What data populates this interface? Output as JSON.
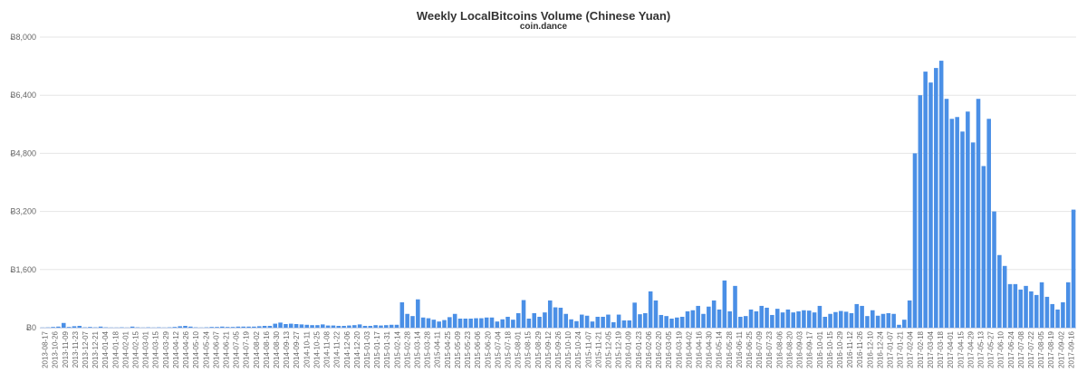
{
  "chart_data": {
    "type": "bar",
    "title": "Weekly LocalBitcoins Volume (Chinese Yuan)",
    "subtitle": "coin.dance",
    "xlabel": "",
    "ylabel": "",
    "ylim": [
      0,
      8000
    ],
    "yticks": [
      0,
      1600,
      3200,
      4800,
      6400,
      8000
    ],
    "ytick_labels": [
      "Ƀ0",
      "Ƀ1,600",
      "Ƀ3,200",
      "Ƀ4,800",
      "Ƀ6,400",
      "Ƀ8,000"
    ],
    "grid": true,
    "bar_color": "#4a8fe6",
    "start_week": "2013-08-17",
    "week_step_days": 7,
    "xtick_labels": [
      "2013-08-17",
      "2013-10-26",
      "2013-11-09",
      "2013-11-23",
      "2013-12-07",
      "2013-12-21",
      "2014-01-04",
      "2014-01-18",
      "2014-02-01",
      "2014-02-15",
      "2014-03-01",
      "2014-03-15",
      "2014-03-29",
      "2014-04-12",
      "2014-04-26",
      "2014-05-10",
      "2014-05-24",
      "2014-06-07",
      "2014-06-21",
      "2014-07-05",
      "2014-07-19",
      "2014-08-02",
      "2014-08-16",
      "2014-08-30",
      "2014-09-13",
      "2014-09-27",
      "2014-10-11",
      "2014-10-25",
      "2014-11-08",
      "2014-11-22",
      "2014-12-06",
      "2014-12-20",
      "2015-01-03",
      "2015-01-17",
      "2015-01-31",
      "2015-02-14",
      "2015-02-28",
      "2015-03-14",
      "2015-03-28",
      "2015-04-11",
      "2015-04-25",
      "2015-05-09",
      "2015-05-23",
      "2015-06-06",
      "2015-06-20",
      "2015-07-04",
      "2015-07-18",
      "2015-08-01",
      "2015-08-15",
      "2015-08-29",
      "2015-09-12",
      "2015-09-26",
      "2015-10-10",
      "2015-10-24",
      "2015-11-07",
      "2015-11-21",
      "2015-12-05",
      "2015-12-19",
      "2016-01-09",
      "2016-01-23",
      "2016-02-06",
      "2016-02-20",
      "2016-03-05",
      "2016-03-19",
      "2016-04-02",
      "2016-04-16",
      "2016-04-30",
      "2016-05-14",
      "2016-05-28",
      "2016-06-11",
      "2016-06-25",
      "2016-07-09",
      "2016-07-23",
      "2016-08-06",
      "2016-08-20",
      "2016-09-03",
      "2016-09-17",
      "2016-10-01",
      "2016-10-15",
      "2016-10-29",
      "2016-11-12",
      "2016-11-26",
      "2016-12-10",
      "2016-12-24",
      "2017-01-07",
      "2017-01-21",
      "2017-02-04",
      "2017-02-18",
      "2017-03-04",
      "2017-03-18",
      "2017-04-01",
      "2017-04-15",
      "2017-04-29",
      "2017-05-13",
      "2017-05-27",
      "2017-06-10",
      "2017-06-24",
      "2017-07-08",
      "2017-07-22",
      "2017-08-05",
      "2017-08-19",
      "2017-09-02",
      "2017-09-16"
    ],
    "values": [
      5,
      8,
      20,
      30,
      130,
      20,
      40,
      50,
      10,
      20,
      10,
      30,
      10,
      5,
      5,
      10,
      5,
      30,
      10,
      5,
      10,
      5,
      10,
      5,
      10,
      20,
      40,
      50,
      30,
      10,
      5,
      10,
      20,
      20,
      30,
      20,
      20,
      30,
      30,
      30,
      30,
      40,
      50,
      50,
      110,
      140,
      100,
      110,
      100,
      90,
      80,
      70,
      70,
      90,
      60,
      60,
      50,
      50,
      60,
      70,
      90,
      50,
      50,
      70,
      60,
      70,
      80,
      80,
      700,
      380,
      320,
      780,
      280,
      260,
      220,
      170,
      210,
      290,
      380,
      250,
      250,
      250,
      260,
      260,
      280,
      280,
      170,
      230,
      300,
      220,
      400,
      760,
      250,
      400,
      300,
      420,
      750,
      560,
      550,
      380,
      230,
      180,
      360,
      330,
      170,
      300,
      300,
      360,
      150,
      360,
      200,
      200,
      690,
      370,
      400,
      1000,
      750,
      350,
      320,
      250,
      280,
      300,
      450,
      480,
      600,
      380,
      580,
      750,
      500,
      1300,
      450,
      1150,
      300,
      320,
      500,
      450,
      600,
      550,
      350,
      520,
      420,
      500,
      420,
      450,
      480,
      470,
      420,
      600,
      300,
      380,
      430,
      460,
      440,
      400,
      650,
      600,
      320,
      480,
      330,
      380,
      400,
      380,
      80,
      220,
      750,
      4800,
      6400,
      7050,
      6750,
      7150,
      7350,
      6300,
      5750,
      5800,
      5400,
      5950,
      5100,
      6300,
      4450,
      5750,
      3200,
      2000,
      1700,
      1200,
      1200,
      1050,
      1150,
      1000,
      900,
      1250,
      850,
      650,
      500,
      700,
      1250,
      3250
    ]
  }
}
